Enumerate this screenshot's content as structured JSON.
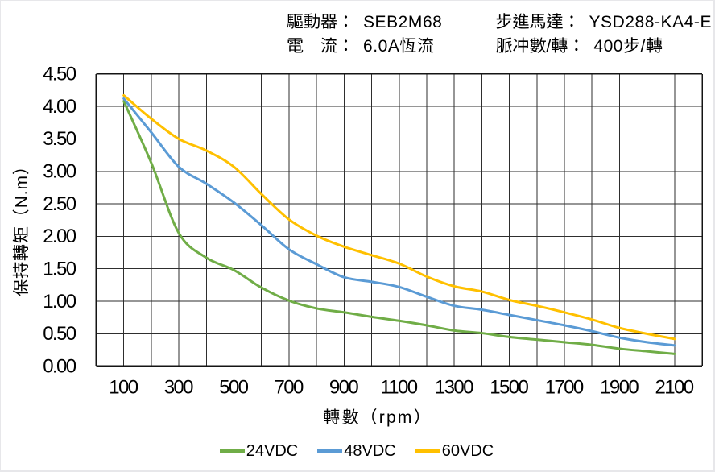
{
  "header": {
    "items": [
      {
        "label": "驅動器：",
        "value": "SEB2M68"
      },
      {
        "label": "步進馬達：",
        "value": "YSD288-KA4-E"
      },
      {
        "label": "電　流：",
        "value": "6.0A恆流"
      },
      {
        "label": "脈冲數/轉：",
        "value": "400步/轉"
      }
    ]
  },
  "chart_data": {
    "type": "line",
    "xlabel": "轉數（rpm）",
    "ylabel": "保持轉矩（N.m）",
    "x": [
      100,
      200,
      300,
      400,
      500,
      600,
      700,
      800,
      900,
      1000,
      1100,
      1200,
      1300,
      1400,
      1500,
      1600,
      1700,
      1800,
      1900,
      2000,
      2100
    ],
    "series": [
      {
        "name": "24VDC",
        "color": "#70AD47",
        "values": [
          4.08,
          3.13,
          2.05,
          1.67,
          1.48,
          1.21,
          1.01,
          0.89,
          0.83,
          0.76,
          0.7,
          0.63,
          0.55,
          0.51,
          0.45,
          0.41,
          0.37,
          0.33,
          0.27,
          0.23,
          0.19
        ]
      },
      {
        "name": "48VDC",
        "color": "#5B9BD5",
        "values": [
          4.12,
          3.6,
          3.07,
          2.81,
          2.52,
          2.17,
          1.8,
          1.57,
          1.37,
          1.3,
          1.22,
          1.07,
          0.93,
          0.87,
          0.79,
          0.71,
          0.63,
          0.54,
          0.44,
          0.37,
          0.32
        ]
      },
      {
        "name": "60VDC",
        "color": "#FFC000",
        "values": [
          4.17,
          3.81,
          3.5,
          3.32,
          3.07,
          2.65,
          2.26,
          2.01,
          1.84,
          1.71,
          1.58,
          1.38,
          1.23,
          1.15,
          1.02,
          0.93,
          0.83,
          0.72,
          0.59,
          0.5,
          0.42
        ]
      }
    ],
    "xlim": [
      0,
      2200
    ],
    "ylim": [
      0,
      4.5
    ],
    "x_grid_step": 100,
    "y_grid_step": 0.5,
    "x_tick_labels": [
      "100",
      "300",
      "500",
      "700",
      "900",
      "1100",
      "1300",
      "1500",
      "1700",
      "1900",
      "2100"
    ],
    "y_tick_labels": [
      "0.00",
      "0.50",
      "1.00",
      "1.50",
      "2.00",
      "2.50",
      "3.00",
      "3.50",
      "4.00",
      "4.50"
    ],
    "grid": true,
    "smooth": true,
    "legend_position": "bottom",
    "grid_color": "#2e2e2e",
    "axis_color": "#141414",
    "text_color": "#000000"
  }
}
